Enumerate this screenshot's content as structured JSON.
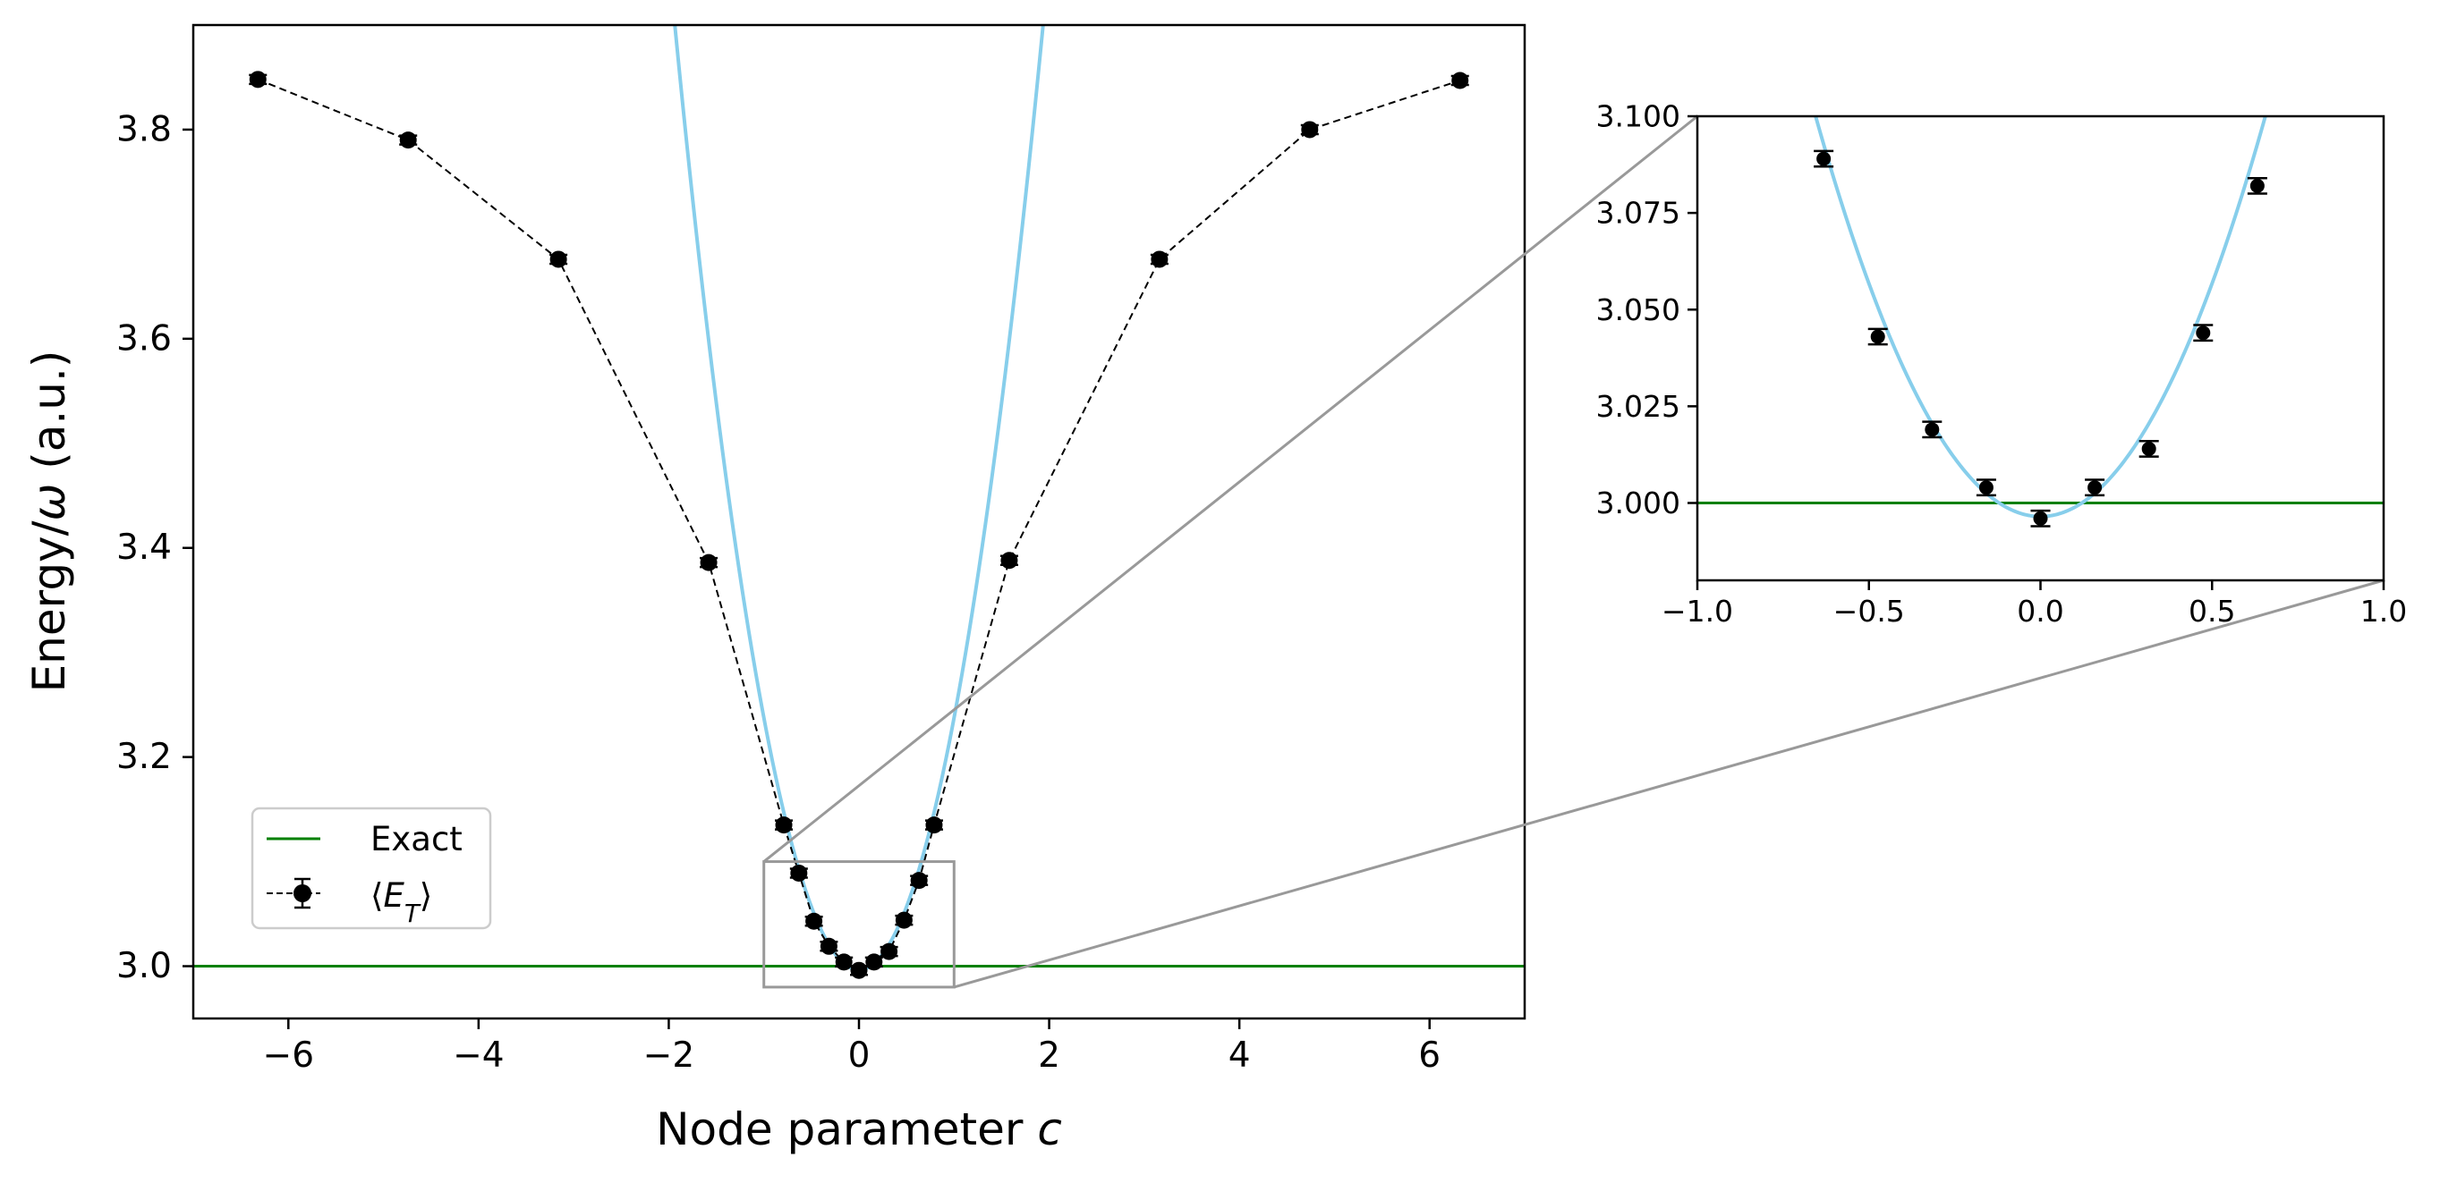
{
  "chart_data": [
    {
      "id": "main",
      "type": "line",
      "xlabel_parts": [
        {
          "t": "Node parameter "
        },
        {
          "t": "c",
          "italic": true
        }
      ],
      "ylabel_parts": [
        {
          "t": "Energy/"
        },
        {
          "t": "ω",
          "italic": true
        },
        {
          "t": " (a.u.)"
        }
      ],
      "xlim": [
        -7,
        7
      ],
      "ylim": [
        2.95,
        3.9
      ],
      "xticks": [
        -6,
        -4,
        -2,
        0,
        2,
        4,
        6
      ],
      "xtick_labels": [
        "−6",
        "−4",
        "−2",
        "0",
        "2",
        "4",
        "6"
      ],
      "yticks": [
        3.0,
        3.2,
        3.4,
        3.6,
        3.8
      ],
      "ytick_labels": [
        "3.0",
        "3.2",
        "3.4",
        "3.6",
        "3.8"
      ],
      "grid": false,
      "legend_position": "lower-left",
      "exact_line": {
        "name": "Exact",
        "y": 3.0,
        "color": "#008000"
      },
      "curve": {
        "type": "parabola",
        "a": 0.241,
        "vertex_x": 0.0,
        "vertex_y": 2.9965,
        "color": "#87ceeb"
      },
      "series": [
        {
          "name": "⟨E_T⟩",
          "color": "#000000",
          "x": [
            -6.32,
            -4.74,
            -3.16,
            -1.58,
            -0.79,
            -0.632,
            -0.474,
            -0.316,
            -0.158,
            0.0,
            0.158,
            0.316,
            0.474,
            0.632,
            0.79,
            1.58,
            3.16,
            4.74,
            6.32
          ],
          "y": [
            3.848,
            3.79,
            3.676,
            3.386,
            3.135,
            3.089,
            3.043,
            3.019,
            3.004,
            2.996,
            3.004,
            3.014,
            3.044,
            3.082,
            3.135,
            3.388,
            3.676,
            3.8,
            3.847
          ],
          "yerr": [
            0.002,
            0.002,
            0.002,
            0.003,
            0.002,
            0.002,
            0.002,
            0.002,
            0.002,
            0.002,
            0.002,
            0.002,
            0.002,
            0.002,
            0.002,
            0.002,
            0.002,
            0.002,
            0.002
          ]
        }
      ],
      "zoom_box": {
        "xlim": [
          -1.0,
          1.0
        ],
        "ylim": [
          2.98,
          3.1
        ]
      }
    },
    {
      "id": "inset",
      "type": "line",
      "xlim": [
        -1.0,
        1.0
      ],
      "ylim": [
        2.98,
        3.1
      ],
      "xticks": [
        -1.0,
        -0.5,
        0.0,
        0.5,
        1.0
      ],
      "xtick_labels": [
        "−1.0",
        "−0.5",
        "0.0",
        "0.5",
        "1.0"
      ],
      "yticks": [
        3.0,
        3.025,
        3.05,
        3.075,
        3.1
      ],
      "ytick_labels": [
        "3.000",
        "3.025",
        "3.050",
        "3.075",
        "3.100"
      ],
      "grid": false,
      "exact_line": {
        "y": 3.0,
        "color": "#008000"
      },
      "curve": {
        "type": "parabola",
        "a": 0.241,
        "vertex_x": 0.0,
        "vertex_y": 2.9965,
        "color": "#87ceeb"
      },
      "series": [
        {
          "color": "#000000",
          "x": [
            -0.632,
            -0.474,
            -0.316,
            -0.158,
            0.0,
            0.158,
            0.316,
            0.474,
            0.632
          ],
          "y": [
            3.089,
            3.043,
            3.019,
            3.004,
            2.996,
            3.004,
            3.014,
            3.044,
            3.082
          ],
          "yerr": [
            0.002,
            0.002,
            0.002,
            0.002,
            0.002,
            0.002,
            0.002,
            0.002,
            0.002
          ]
        }
      ]
    }
  ],
  "legend": {
    "entries": [
      {
        "label": "Exact",
        "color": "#008000",
        "kind": "line"
      },
      {
        "label_parts": [
          {
            "t": "⟨"
          },
          {
            "t": "E",
            "italic": true
          },
          {
            "t": "T",
            "italic": true,
            "sub": true
          },
          {
            "t": "⟩"
          }
        ],
        "color": "#000000",
        "kind": "errorbar-dashed"
      }
    ]
  },
  "colors": {
    "connector": "#999999",
    "zoom_box": "#999999",
    "axes": "#000000"
  }
}
